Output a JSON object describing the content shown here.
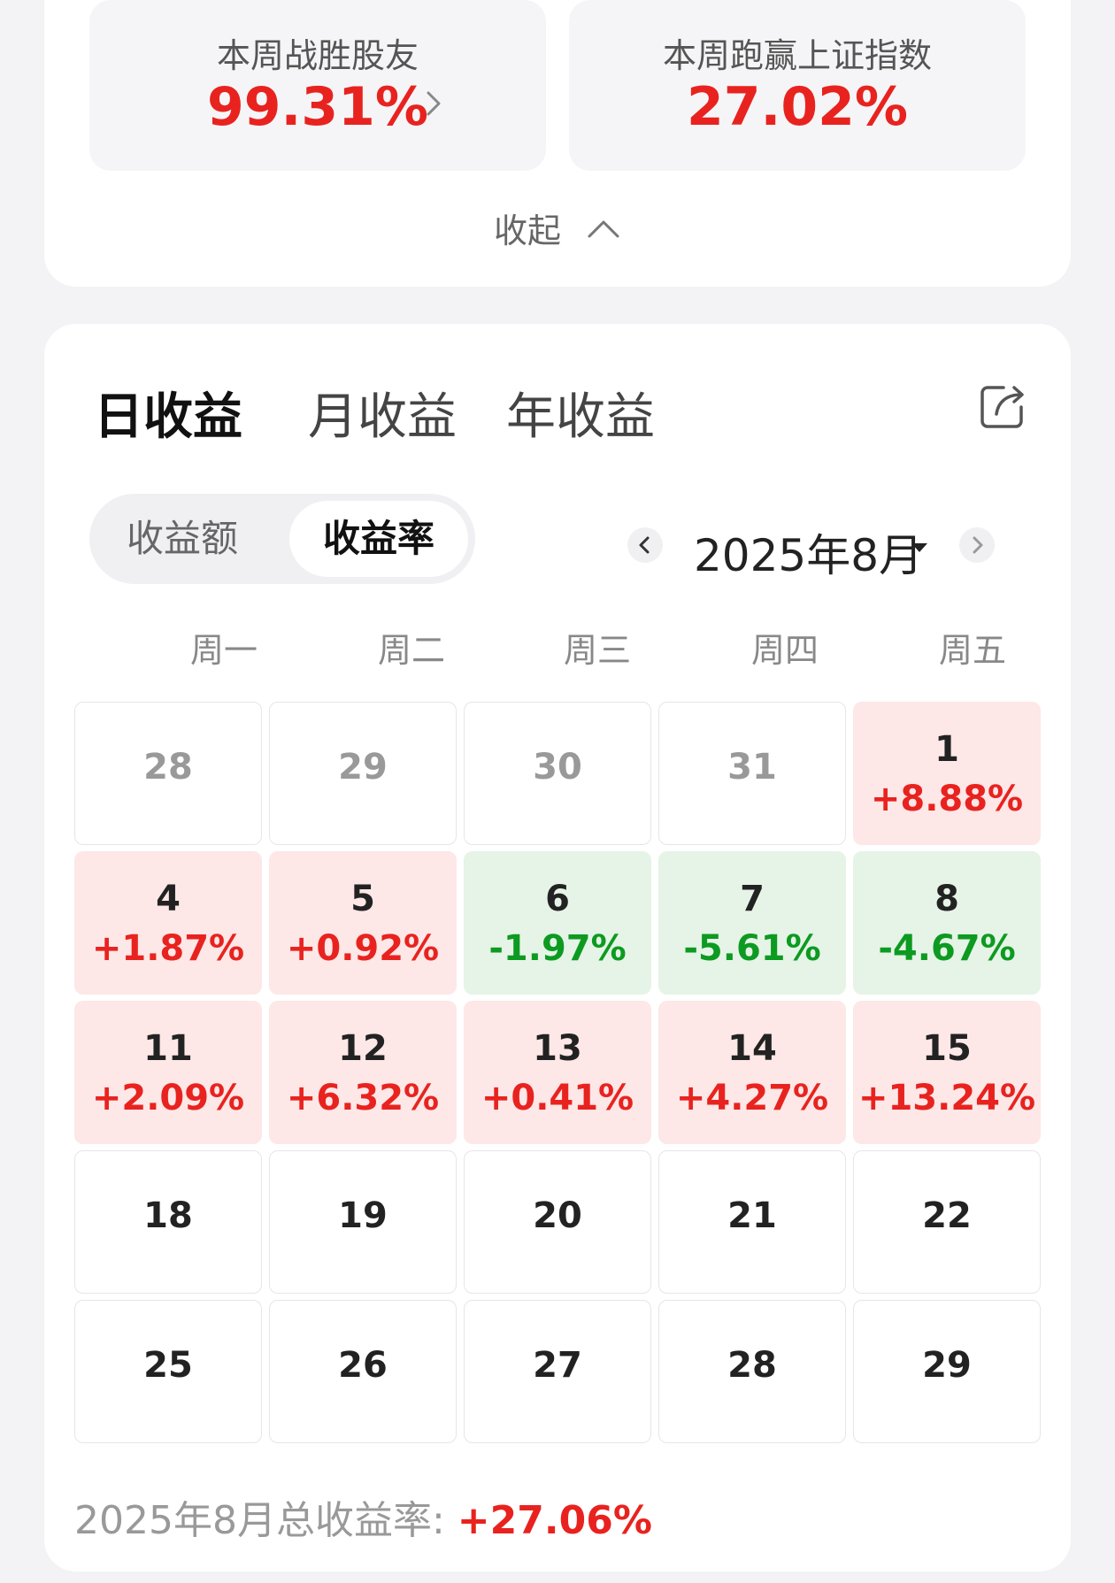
{
  "stats": {
    "beat_friends": {
      "label": "本周战胜股友",
      "value": "99.31%"
    },
    "beat_index": {
      "label": "本周跑赢上证指数",
      "value": "27.02%"
    },
    "collapse_label": "收起"
  },
  "tabs": [
    {
      "label": "日收益",
      "active": true
    },
    {
      "label": "月收益",
      "active": false
    },
    {
      "label": "年收益",
      "active": false
    }
  ],
  "toggle": {
    "amount_label": "收益额",
    "rate_label": "收益率",
    "selected": "收益率"
  },
  "month_selector": {
    "label": "2025年8月"
  },
  "weekdays": [
    "周一",
    "周二",
    "周三",
    "周四",
    "周五"
  ],
  "calendar": [
    {
      "day": "28",
      "rate": "",
      "trend": "none",
      "in_month": false
    },
    {
      "day": "29",
      "rate": "",
      "trend": "none",
      "in_month": false
    },
    {
      "day": "30",
      "rate": "",
      "trend": "none",
      "in_month": false
    },
    {
      "day": "31",
      "rate": "",
      "trend": "none",
      "in_month": false
    },
    {
      "day": "1",
      "rate": "+8.88%",
      "trend": "up",
      "in_month": true
    },
    {
      "day": "4",
      "rate": "+1.87%",
      "trend": "up",
      "in_month": true
    },
    {
      "day": "5",
      "rate": "+0.92%",
      "trend": "up",
      "in_month": true
    },
    {
      "day": "6",
      "rate": "-1.97%",
      "trend": "down",
      "in_month": true
    },
    {
      "day": "7",
      "rate": "-5.61%",
      "trend": "down",
      "in_month": true
    },
    {
      "day": "8",
      "rate": "-4.67%",
      "trend": "down",
      "in_month": true
    },
    {
      "day": "11",
      "rate": "+2.09%",
      "trend": "up",
      "in_month": true
    },
    {
      "day": "12",
      "rate": "+6.32%",
      "trend": "up",
      "in_month": true
    },
    {
      "day": "13",
      "rate": "+0.41%",
      "trend": "up",
      "in_month": true
    },
    {
      "day": "14",
      "rate": "+4.27%",
      "trend": "up",
      "in_month": true
    },
    {
      "day": "15",
      "rate": "+13.24%",
      "trend": "up",
      "in_month": true
    },
    {
      "day": "18",
      "rate": "",
      "trend": "none",
      "in_month": true
    },
    {
      "day": "19",
      "rate": "",
      "trend": "none",
      "in_month": true
    },
    {
      "day": "20",
      "rate": "",
      "trend": "none",
      "in_month": true
    },
    {
      "day": "21",
      "rate": "",
      "trend": "none",
      "in_month": true
    },
    {
      "day": "22",
      "rate": "",
      "trend": "none",
      "in_month": true
    },
    {
      "day": "25",
      "rate": "",
      "trend": "none",
      "in_month": true
    },
    {
      "day": "26",
      "rate": "",
      "trend": "none",
      "in_month": true
    },
    {
      "day": "27",
      "rate": "",
      "trend": "none",
      "in_month": true
    },
    {
      "day": "28",
      "rate": "",
      "trend": "none",
      "in_month": true
    },
    {
      "day": "29",
      "rate": "",
      "trend": "none",
      "in_month": true
    }
  ],
  "summary": {
    "label": "2025年8月总收益率: ",
    "value": "+27.06%"
  },
  "colors": {
    "up": "#e8231f",
    "down": "#0d9a21",
    "accent": "#f35410"
  },
  "icons": {
    "stat_arrow": "chevron-right-icon",
    "collapse": "chevron-up-icon",
    "share": "share-icon",
    "prev": "chevron-left-icon",
    "next": "chevron-right-icon",
    "caret": "caret-down-icon"
  }
}
